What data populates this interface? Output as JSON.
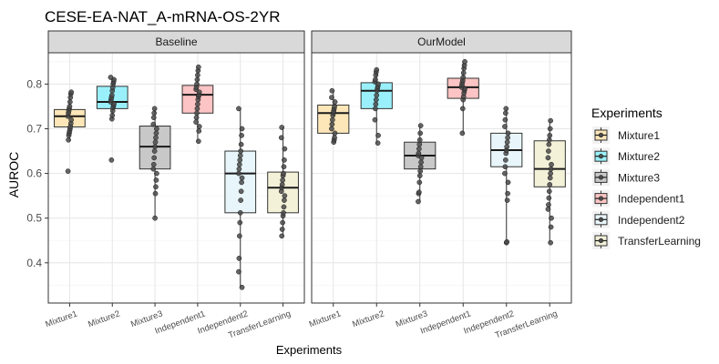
{
  "chart_data": {
    "type": "boxplot",
    "title": "CESE-EA-NAT_A-mRNA-OS-2YR",
    "xlabel": "Experiments",
    "ylabel": "AUROC",
    "ylim": [
      0.31,
      0.87
    ],
    "yticks": [
      0.4,
      0.5,
      0.6,
      0.7,
      0.8
    ],
    "grid": true,
    "legend": {
      "title": "Experiments",
      "position": "right",
      "items": [
        {
          "label": "Mixture1",
          "color": "#fde7b8"
        },
        {
          "label": "Mixture2",
          "color": "#9af0fa"
        },
        {
          "label": "Mixture3",
          "color": "#c8c8c8"
        },
        {
          "label": "Independent1",
          "color": "#fcc4c4"
        },
        {
          "label": "Independent2",
          "color": "#e8f6fb"
        },
        {
          "label": "TransferLearning",
          "color": "#f3f2d9"
        }
      ]
    },
    "categories": [
      "Mixture1",
      "Mixture2",
      "Mixture3",
      "Independent1",
      "Independent2",
      "TransferLearning"
    ],
    "panels": [
      {
        "name": "Baseline",
        "boxes": [
          {
            "q1": 0.704,
            "median": 0.728,
            "q3": 0.743,
            "whisker_low": 0.672,
            "whisker_high": 0.785,
            "points": [
              0.605,
              0.675,
              0.685,
              0.69,
              0.695,
              0.7,
              0.705,
              0.712,
              0.72,
              0.728,
              0.735,
              0.74,
              0.745,
              0.75,
              0.76,
              0.77,
              0.778,
              0.782
            ]
          },
          {
            "q1": 0.745,
            "median": 0.76,
            "q3": 0.795,
            "whisker_low": 0.722,
            "whisker_high": 0.815,
            "points": [
              0.63,
              0.722,
              0.73,
              0.74,
              0.748,
              0.752,
              0.756,
              0.76,
              0.765,
              0.77,
              0.775,
              0.785,
              0.792,
              0.8,
              0.805,
              0.81,
              0.815
            ]
          },
          {
            "q1": 0.61,
            "median": 0.66,
            "q3": 0.706,
            "whisker_low": 0.5,
            "whisker_high": 0.745,
            "points": [
              0.5,
              0.555,
              0.57,
              0.585,
              0.6,
              0.61,
              0.62,
              0.635,
              0.65,
              0.66,
              0.67,
              0.68,
              0.69,
              0.7,
              0.71,
              0.725,
              0.735,
              0.745
            ]
          },
          {
            "q1": 0.735,
            "median": 0.776,
            "q3": 0.797,
            "whisker_low": 0.672,
            "whisker_high": 0.838,
            "points": [
              0.672,
              0.695,
              0.705,
              0.715,
              0.725,
              0.735,
              0.745,
              0.755,
              0.765,
              0.772,
              0.776,
              0.782,
              0.788,
              0.793,
              0.8,
              0.81,
              0.82,
              0.83,
              0.838
            ]
          },
          {
            "q1": 0.512,
            "median": 0.6,
            "q3": 0.65,
            "whisker_low": 0.345,
            "whisker_high": 0.745,
            "points": [
              0.345,
              0.38,
              0.41,
              0.46,
              0.49,
              0.512,
              0.54,
              0.56,
              0.58,
              0.59,
              0.6,
              0.61,
              0.62,
              0.63,
              0.64,
              0.65,
              0.665,
              0.685,
              0.7,
              0.745
            ]
          },
          {
            "q1": 0.512,
            "median": 0.568,
            "q3": 0.603,
            "whisker_low": 0.46,
            "whisker_high": 0.703,
            "points": [
              0.46,
              0.475,
              0.49,
              0.505,
              0.512,
              0.525,
              0.54,
              0.55,
              0.56,
              0.568,
              0.575,
              0.585,
              0.595,
              0.6,
              0.615,
              0.63,
              0.655,
              0.68,
              0.703
            ]
          }
        ]
      },
      {
        "name": "OurModel",
        "boxes": [
          {
            "q1": 0.69,
            "median": 0.735,
            "q3": 0.753,
            "whisker_low": 0.67,
            "whisker_high": 0.785,
            "points": [
              0.67,
              0.675,
              0.68,
              0.69,
              0.7,
              0.71,
              0.72,
              0.73,
              0.735,
              0.74,
              0.745,
              0.75,
              0.76,
              0.77,
              0.785
            ]
          },
          {
            "q1": 0.745,
            "median": 0.785,
            "q3": 0.803,
            "whisker_low": 0.668,
            "whisker_high": 0.832,
            "points": [
              0.668,
              0.685,
              0.72,
              0.745,
              0.755,
              0.765,
              0.775,
              0.785,
              0.79,
              0.795,
              0.8,
              0.805,
              0.81,
              0.82,
              0.827,
              0.832
            ]
          },
          {
            "q1": 0.61,
            "median": 0.64,
            "q3": 0.67,
            "whisker_low": 0.537,
            "whisker_high": 0.707,
            "points": [
              0.537,
              0.555,
              0.558,
              0.58,
              0.595,
              0.605,
              0.615,
              0.625,
              0.635,
              0.64,
              0.645,
              0.655,
              0.665,
              0.675,
              0.69,
              0.707
            ]
          },
          {
            "q1": 0.768,
            "median": 0.793,
            "q3": 0.813,
            "whisker_low": 0.69,
            "whisker_high": 0.85,
            "points": [
              0.69,
              0.745,
              0.765,
              0.772,
              0.78,
              0.786,
              0.79,
              0.793,
              0.798,
              0.803,
              0.808,
              0.815,
              0.825,
              0.835,
              0.842,
              0.85
            ]
          },
          {
            "q1": 0.615,
            "median": 0.652,
            "q3": 0.69,
            "whisker_low": 0.445,
            "whisker_high": 0.745,
            "points": [
              0.445,
              0.447,
              0.54,
              0.555,
              0.58,
              0.6,
              0.615,
              0.63,
              0.645,
              0.652,
              0.66,
              0.67,
              0.68,
              0.69,
              0.705,
              0.72,
              0.735,
              0.745
            ]
          },
          {
            "q1": 0.57,
            "median": 0.61,
            "q3": 0.673,
            "whisker_low": 0.445,
            "whisker_high": 0.718,
            "points": [
              0.445,
              0.48,
              0.5,
              0.52,
              0.53,
              0.545,
              0.56,
              0.575,
              0.59,
              0.6,
              0.61,
              0.62,
              0.635,
              0.65,
              0.665,
              0.675,
              0.685,
              0.7,
              0.718
            ]
          }
        ]
      }
    ]
  }
}
